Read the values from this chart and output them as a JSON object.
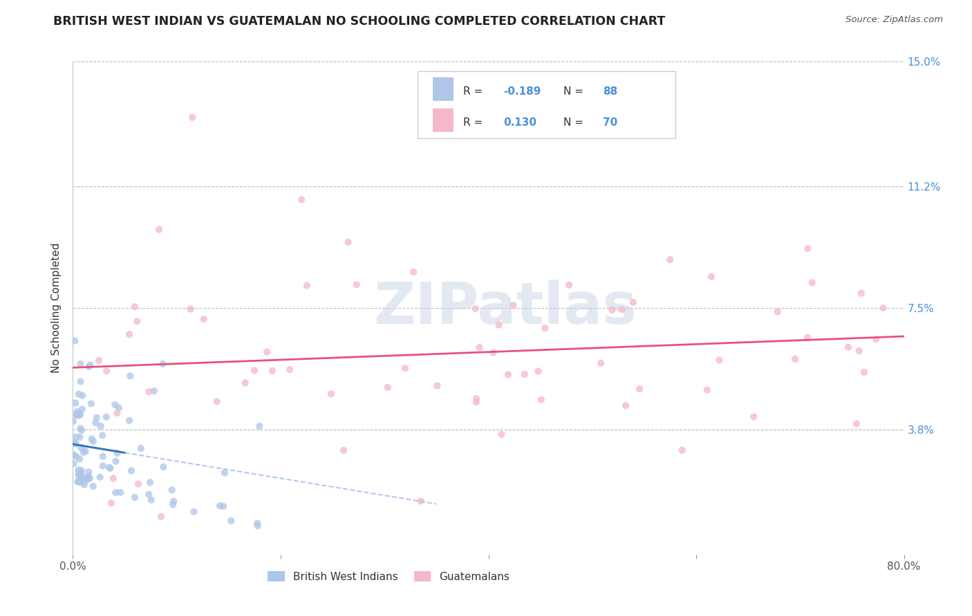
{
  "title": "BRITISH WEST INDIAN VS GUATEMALAN NO SCHOOLING COMPLETED CORRELATION CHART",
  "source": "Source: ZipAtlas.com",
  "ylabel": "No Schooling Completed",
  "xlim": [
    0.0,
    0.8
  ],
  "ylim": [
    0.0,
    0.15
  ],
  "xticks": [
    0.0,
    0.2,
    0.4,
    0.6,
    0.8
  ],
  "xticklabels": [
    "0.0%",
    "",
    "",
    "",
    "80.0%"
  ],
  "yticks": [
    0.0,
    0.038,
    0.075,
    0.112,
    0.15
  ],
  "yticklabels_right": [
    "",
    "3.8%",
    "7.5%",
    "11.2%",
    "15.0%"
  ],
  "grid_color": "#bbbbbb",
  "bg_color": "#ffffff",
  "watermark": "ZIPatlas",
  "blue_color": "#aec6e8",
  "pink_color": "#f5b8c8",
  "blue_line_color": "#3a78b5",
  "pink_line_color": "#e8517a",
  "blue_dashed_color": "#aec6e8",
  "r1": -0.189,
  "r2": 0.13,
  "n1": 88,
  "n2": 70,
  "tick_color": "#4a90d9",
  "title_color": "#222222",
  "source_color": "#555555"
}
